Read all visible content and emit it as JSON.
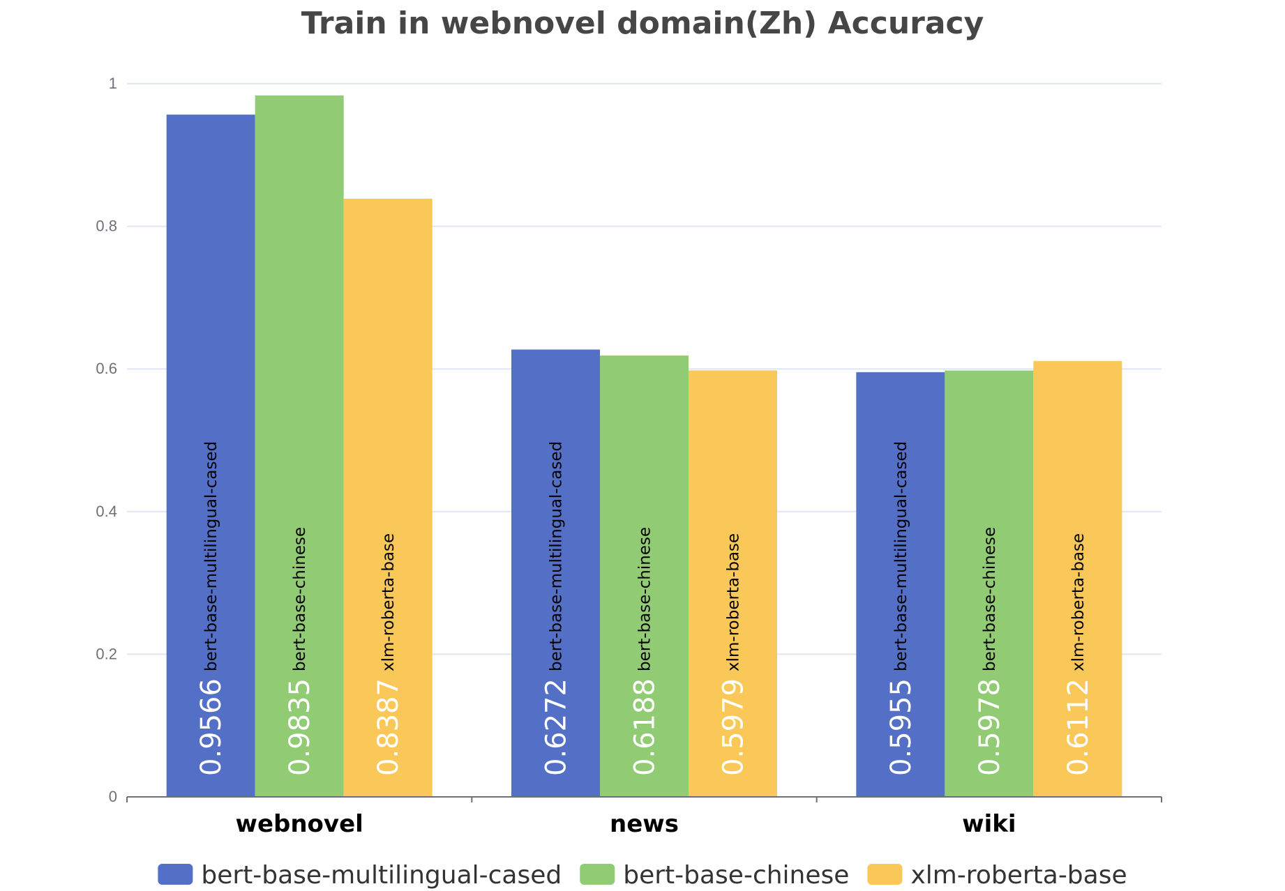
{
  "chart_data": {
    "type": "bar",
    "title": "Train in webnovel domain(Zh) Accuracy",
    "categories": [
      "webnovel",
      "news",
      "wiki"
    ],
    "series": [
      {
        "name": "bert-base-multilingual-cased",
        "color": "#5470c6",
        "values": [
          0.9566,
          0.6272,
          0.5955
        ],
        "labels": [
          "0.9566",
          "0.6272",
          "0.5955"
        ]
      },
      {
        "name": "bert-base-chinese",
        "color": "#91cc75",
        "values": [
          0.9835,
          0.6188,
          0.5978
        ],
        "labels": [
          "0.9835",
          "0.6188",
          "0.5978"
        ]
      },
      {
        "name": "xlm-roberta-base",
        "color": "#fac858",
        "values": [
          0.8387,
          0.5979,
          0.6112
        ],
        "labels": [
          "0.8387",
          "0.5979",
          "0.6112"
        ]
      }
    ],
    "ylim": [
      0,
      1
    ],
    "yticks": [
      "0",
      "0.2",
      "0.4",
      "0.6",
      "0.8",
      "1"
    ],
    "xlabel": "",
    "ylabel": "",
    "grid": true,
    "legend": "bottom-center"
  }
}
